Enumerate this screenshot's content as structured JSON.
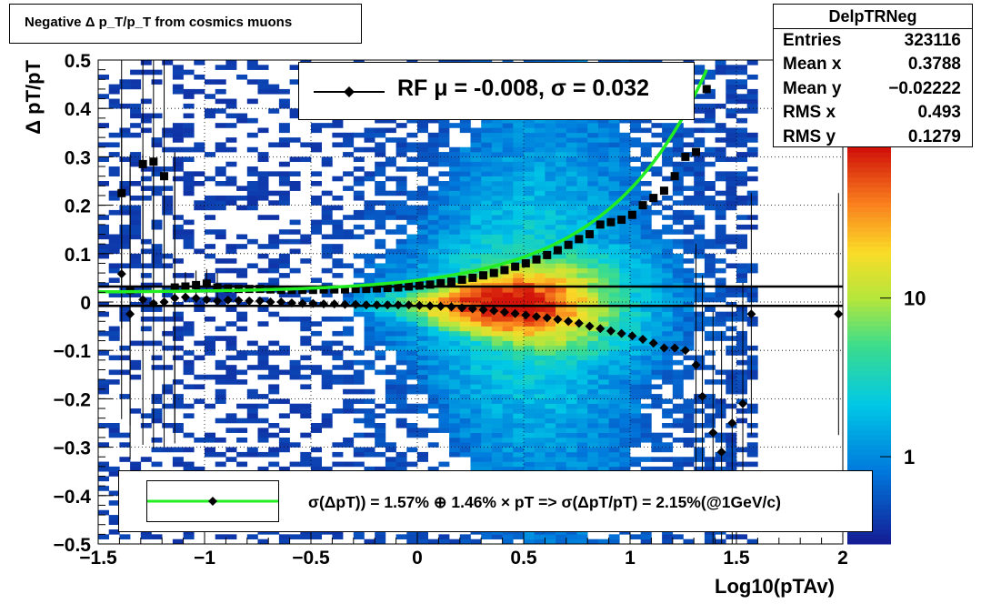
{
  "title": "Negative Δ p_T/p_T from cosmics muons",
  "stats": {
    "name": "DelpTRNeg",
    "rows": [
      {
        "label": "Entries",
        "value": "323116"
      },
      {
        "label": "Mean x",
        "value": "0.3788"
      },
      {
        "label": "Mean y",
        "value": "−0.02222"
      },
      {
        "label": "RMS x",
        "value": "0.493"
      },
      {
        "label": "RMS y",
        "value": "0.1279"
      }
    ]
  },
  "legend_top": "RF μ = -0.008, σ =   0.032",
  "legend_bottom": "σ(ΔpT)) =  1.57% ⊕  1.46% × pT => σ(ΔpT/pT) =  2.15%(@1GeV/c)",
  "colors": {
    "fit_curve": "#22ee22",
    "markers": "#000000"
  },
  "chart_data": {
    "type": "heatmap",
    "title": "Negative Δ p_T/p_T from cosmics muons",
    "xlabel": "Log10(pTAv)",
    "ylabel": "Δ pT/pT",
    "xlim": [
      -1.5,
      2.0
    ],
    "ylim": [
      -0.5,
      0.5
    ],
    "x_ticks": [
      -1.5,
      -1,
      -0.5,
      0,
      0.5,
      1,
      1.5,
      2
    ],
    "x_tick_labels": [
      "−1.5",
      "−1",
      "−0.5",
      "0",
      "0.5",
      "1",
      "1.5",
      "2"
    ],
    "y_ticks": [
      -0.5,
      -0.4,
      -0.3,
      -0.2,
      -0.1,
      0,
      0.1,
      0.2,
      0.3,
      0.4,
      0.5
    ],
    "y_tick_labels": [
      "−0.5",
      "−0.4",
      "−0.3",
      "−0.2",
      "−0.1",
      "0",
      "0.1",
      "0.2",
      "0.3",
      "0.4",
      "0.5"
    ],
    "colorbar": {
      "scale": "log",
      "tick_labels": [
        "1",
        "10"
      ]
    },
    "grid": true,
    "horizontal_lines": [
      0.032,
      -0.008
    ],
    "sigma_points": {
      "x": [
        -1.39,
        -1.35,
        -1.29,
        -1.24,
        -1.19,
        -1.14,
        -1.09,
        -1.04,
        -0.99,
        -0.94,
        -0.89,
        -0.84,
        -0.79,
        -0.74,
        -0.69,
        -0.64,
        -0.59,
        -0.54,
        -0.49,
        -0.44,
        -0.39,
        -0.34,
        -0.29,
        -0.24,
        -0.19,
        -0.14,
        -0.09,
        -0.04,
        0.01,
        0.06,
        0.11,
        0.16,
        0.21,
        0.26,
        0.31,
        0.36,
        0.41,
        0.46,
        0.51,
        0.56,
        0.61,
        0.66,
        0.71,
        0.76,
        0.81,
        0.86,
        0.91,
        0.96,
        1.01,
        1.06,
        1.11,
        1.16,
        1.21,
        1.26,
        1.31,
        1.36
      ],
      "y": [
        0.225,
        0.025,
        0.285,
        0.29,
        0.26,
        0.03,
        0.032,
        0.035,
        0.038,
        0.03,
        0.028,
        0.027,
        0.027,
        0.027,
        0.026,
        0.025,
        0.025,
        0.025,
        0.025,
        0.026,
        0.026,
        0.026,
        0.027,
        0.027,
        0.028,
        0.029,
        0.03,
        0.032,
        0.034,
        0.036,
        0.039,
        0.042,
        0.046,
        0.05,
        0.055,
        0.06,
        0.066,
        0.073,
        0.08,
        0.088,
        0.097,
        0.107,
        0.118,
        0.13,
        0.14,
        0.16,
        0.165,
        0.17,
        0.18,
        0.2,
        0.215,
        0.23,
        0.26,
        0.3,
        0.31,
        0.44
      ]
    },
    "mean_points": {
      "x": [
        -1.39,
        -1.35,
        -1.29,
        -1.24,
        -1.19,
        -1.14,
        -1.09,
        -1.04,
        -0.99,
        -0.94,
        -0.89,
        -0.84,
        -0.79,
        -0.74,
        -0.69,
        -0.64,
        -0.59,
        -0.54,
        -0.49,
        -0.44,
        -0.39,
        -0.34,
        -0.29,
        -0.24,
        -0.19,
        -0.14,
        -0.09,
        -0.04,
        0.01,
        0.06,
        0.11,
        0.16,
        0.21,
        0.26,
        0.31,
        0.36,
        0.41,
        0.46,
        0.51,
        0.56,
        0.61,
        0.66,
        0.71,
        0.76,
        0.81,
        0.86,
        0.91,
        0.96,
        1.01,
        1.06,
        1.11,
        1.16,
        1.21,
        1.26,
        1.31,
        1.34,
        1.39,
        1.43,
        1.48,
        1.53,
        1.57,
        1.98
      ],
      "y": [
        0.058,
        -0.025,
        0.005,
        -0.003,
        0.0,
        0.008,
        0.01,
        0.008,
        0.005,
        0.002,
        0.004,
        0.003,
        0.002,
        0.002,
        0.0,
        0.0,
        -0.002,
        -0.003,
        -0.003,
        -0.004,
        -0.004,
        -0.005,
        -0.005,
        -0.006,
        -0.006,
        -0.006,
        -0.006,
        -0.006,
        -0.007,
        -0.008,
        -0.009,
        -0.01,
        -0.012,
        -0.014,
        -0.016,
        -0.018,
        -0.021,
        -0.024,
        -0.027,
        -0.03,
        -0.033,
        -0.036,
        -0.04,
        -0.044,
        -0.05,
        -0.055,
        -0.06,
        -0.065,
        -0.07,
        -0.077,
        -0.085,
        -0.095,
        -0.095,
        -0.1,
        -0.13,
        -0.195,
        -0.27,
        -0.31,
        -0.25,
        -0.21,
        -0.025,
        -0.025
      ]
    },
    "fit_curve": {
      "x_start": -1.5,
      "x_end": 1.38,
      "y_min": 0.02,
      "y_end": 0.5
    }
  }
}
